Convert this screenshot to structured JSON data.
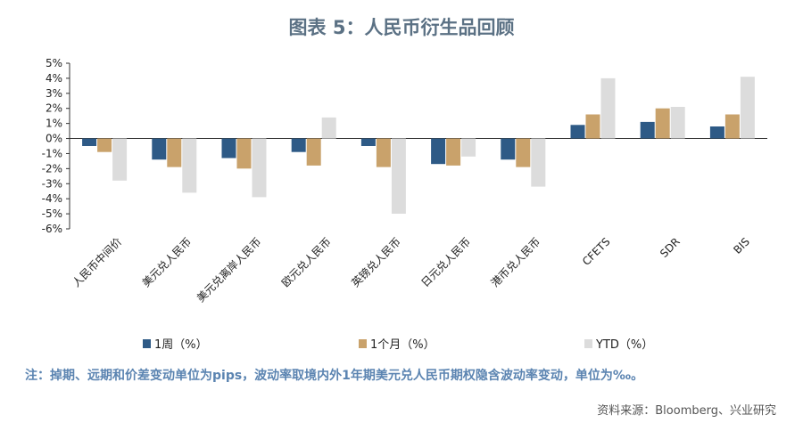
{
  "page": {
    "title": "图表 5：人民币衍生品回顾",
    "note": "注：掉期、远期和价差变动单位为pips，波动率取境内外1年期美元兑人民币期权隐含波动率变动，单位为‰。",
    "source": "资料来源：Bloomberg、兴业研究"
  },
  "chart_data": {
    "type": "bar",
    "categories": [
      "人民币中间价",
      "美元兑人民币",
      "美元兑离岸人民币",
      "欧元兑人民币",
      "英镑兑人民币",
      "日元兑人民币",
      "港币兑人民币",
      "CFETS",
      "SDR",
      "BIS"
    ],
    "series": [
      {
        "name": "1周（%）",
        "color": "#2e5a86",
        "values": [
          -0.5,
          -1.4,
          -1.3,
          -0.9,
          -0.5,
          -1.7,
          -1.4,
          0.9,
          1.1,
          0.8
        ]
      },
      {
        "name": "1个月（%）",
        "color": "#c9a26b",
        "values": [
          -0.9,
          -1.9,
          -2.0,
          -1.8,
          -1.9,
          -1.8,
          -1.9,
          1.6,
          2.0,
          1.6
        ]
      },
      {
        "name": "YTD（%）",
        "color": "#dcdcdc",
        "values": [
          -2.8,
          -3.6,
          -3.9,
          1.4,
          -5.0,
          -1.2,
          -3.2,
          4.0,
          2.1,
          4.1
        ]
      }
    ],
    "ylim": [
      -6,
      5
    ],
    "yticks": [
      "-6%",
      "-5%",
      "-4%",
      "-3%",
      "-2%",
      "-1%",
      "0%",
      "1%",
      "2%",
      "3%",
      "4%",
      "5%"
    ],
    "legend_position": "bottom",
    "grid": false
  }
}
